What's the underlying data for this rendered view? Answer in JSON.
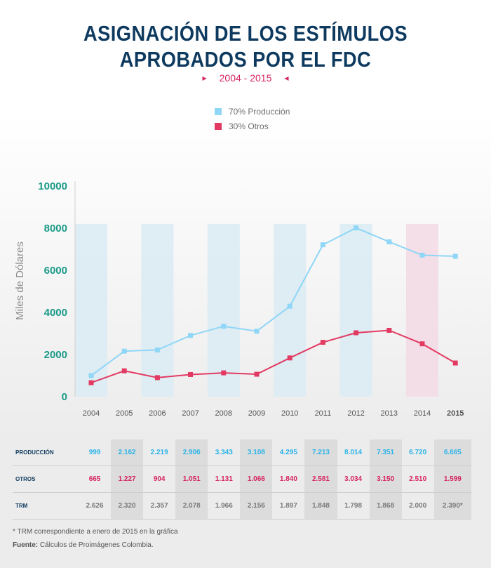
{
  "title_line1": "ASIGNACIÓN DE LOS ESTÍMULOS",
  "title_line2": "APROBADOS POR EL FDC",
  "subtitle": "2004 - 2015",
  "legend": [
    {
      "label": "70% Producción",
      "color": "#8fd6f7"
    },
    {
      "label": "30% Otros",
      "color": "#e23a62"
    }
  ],
  "chart_data": {
    "type": "line",
    "title": "ASIGNACIÓN DE LOS ESTÍMULOS APROBADOS POR EL FDC",
    "subtitle": "2004 - 2015",
    "ylabel": "Miles de Dólares",
    "xlabel": "",
    "ylim": [
      0,
      10000
    ],
    "yticks": [
      0,
      2000,
      4000,
      6000,
      8000,
      10000
    ],
    "x": [
      "2004",
      "2005",
      "2006",
      "2007",
      "2008",
      "2009",
      "2010",
      "2011",
      "2012",
      "2013",
      "2014",
      "2015"
    ],
    "series": [
      {
        "name": "70% Producción",
        "color": "#8fd6f7",
        "values": [
          999,
          2162,
          2219,
          2906,
          3343,
          3108,
          4295,
          7213,
          8014,
          7351,
          6720,
          6665
        ]
      },
      {
        "name": "30% Otros",
        "color": "#e23a62",
        "values": [
          665,
          1227,
          904,
          1051,
          1131,
          1066,
          1840,
          2581,
          3034,
          3150,
          2510,
          1599
        ]
      }
    ],
    "legend_position": "top",
    "highlighted_year": "2015"
  },
  "table": {
    "rows": [
      {
        "label": "PRODUCCIÓN",
        "values": [
          "999",
          "2.162",
          "2.219",
          "2.906",
          "3.343",
          "3.108",
          "4.295",
          "7.213",
          "8.014",
          "7.351",
          "6.720",
          "6.665"
        ]
      },
      {
        "label": "OTROS",
        "values": [
          "665",
          "1.227",
          "904",
          "1.051",
          "1.131",
          "1.066",
          "1.840",
          "2.581",
          "3.034",
          "3.150",
          "2.510",
          "1.599"
        ]
      },
      {
        "label": "TRM",
        "values": [
          "2.626",
          "2.320",
          "2.357",
          "2.078",
          "1.966",
          "2.156",
          "1.897",
          "1.848",
          "1.798",
          "1.868",
          "2.000",
          "2.390*"
        ]
      }
    ]
  },
  "footnote": "* TRM correspondiente a enero de 2015 en la gráfica",
  "source_label": "Fuente:",
  "source_text": " Cálculos de Proimágenes Colombia."
}
